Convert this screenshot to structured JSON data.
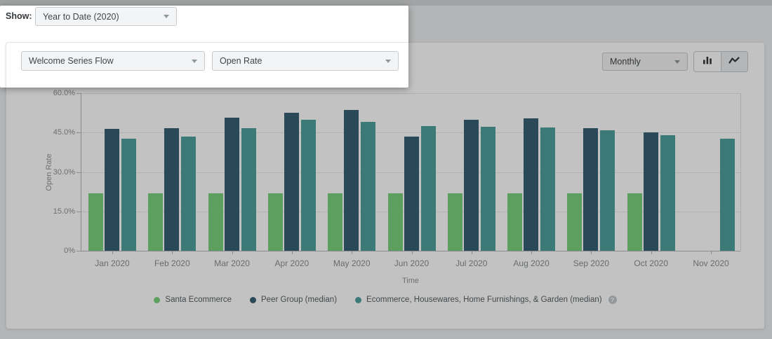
{
  "page": {
    "show_label": "Show:"
  },
  "filters": {
    "date_range": {
      "value": "Year to Date (2020)"
    },
    "flow": {
      "value": "Welcome Series Flow"
    },
    "metric": {
      "value": "Open Rate"
    },
    "granularity": {
      "value": "Monthly"
    }
  },
  "toolbar": {
    "chart_type_active": "bar",
    "chart_type_options": [
      "bar",
      "line"
    ]
  },
  "theme": {
    "page_bg": "#eceef0",
    "card_bg": "#ffffff",
    "dim_overlay": "rgba(0,0,0,0.24)",
    "series_green": "#7ad27c",
    "series_navy": "#376174",
    "series_teal": "#50a19e"
  },
  "chart_data": {
    "type": "bar",
    "title": "",
    "xlabel": "Time",
    "ylabel": "Open Rate",
    "ylim": [
      0,
      60
    ],
    "grid": true,
    "legend_position": "bottom",
    "yticks": [
      {
        "value": 0,
        "label": "0%"
      },
      {
        "value": 15,
        "label": "15.0%"
      },
      {
        "value": 30,
        "label": "30.0%"
      },
      {
        "value": 45,
        "label": "45.0%"
      },
      {
        "value": 60,
        "label": "60.0%"
      }
    ],
    "categories": [
      "Jan 2020",
      "Feb 2020",
      "Mar 2020",
      "Apr 2020",
      "May 2020",
      "Jun 2020",
      "Jul 2020",
      "Aug 2020",
      "Sep 2020",
      "Oct 2020",
      "Nov 2020"
    ],
    "series": [
      {
        "name": "Santa Ecommerce",
        "color": "#7ad27c",
        "values": [
          22,
          22,
          22,
          22,
          22,
          22,
          22,
          22,
          22,
          22,
          null
        ]
      },
      {
        "name": "Peer Group (median)",
        "color": "#376174",
        "values": [
          46.3,
          46.8,
          50.6,
          52.6,
          53.5,
          43.5,
          50.0,
          50.5,
          46.8,
          45.2,
          null
        ]
      },
      {
        "name": "Ecommerce, Housewares, Home Furnishings, & Garden (median)",
        "color": "#50a19e",
        "help_icon": true,
        "values": [
          42.8,
          43.6,
          46.8,
          50.0,
          49.2,
          47.5,
          47.3,
          47.0,
          45.9,
          44.0,
          42.8
        ]
      }
    ]
  }
}
